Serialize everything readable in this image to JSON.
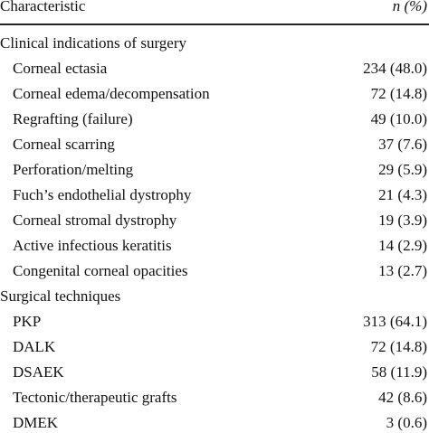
{
  "table": {
    "header": [
      "Characteristic",
      "n (%)"
    ],
    "sections": [
      {
        "title": "Clinical indications of surgery",
        "rows": [
          [
            "Corneal ectasia",
            "234 (48.0)"
          ],
          [
            "Corneal edema/decompensation",
            "72 (14.8)"
          ],
          [
            "Regrafting (failure)",
            "49 (10.0)"
          ],
          [
            "Corneal scarring",
            "37 (7.6)"
          ],
          [
            "Perforation/melting",
            "29 (5.9)"
          ],
          [
            "Fuch’s endothelial dystrophy",
            "21 (4.3)"
          ],
          [
            "Corneal stromal dystrophy",
            "19 (3.9)"
          ],
          [
            "Active infectious keratitis",
            "14 (2.9)"
          ],
          [
            "Congenital corneal opacities",
            "13 (2.7)"
          ]
        ]
      },
      {
        "title": "Surgical techniques",
        "rows": [
          [
            "PKP",
            "313 (64.1)"
          ],
          [
            "DALK",
            "72 (14.8)"
          ],
          [
            "DSAEK",
            "58 (11.9)"
          ],
          [
            "Tectonic/therapeutic grafts",
            "42 (8.6)"
          ],
          [
            "DMEK",
            "3 (0.6)"
          ]
        ]
      }
    ]
  }
}
